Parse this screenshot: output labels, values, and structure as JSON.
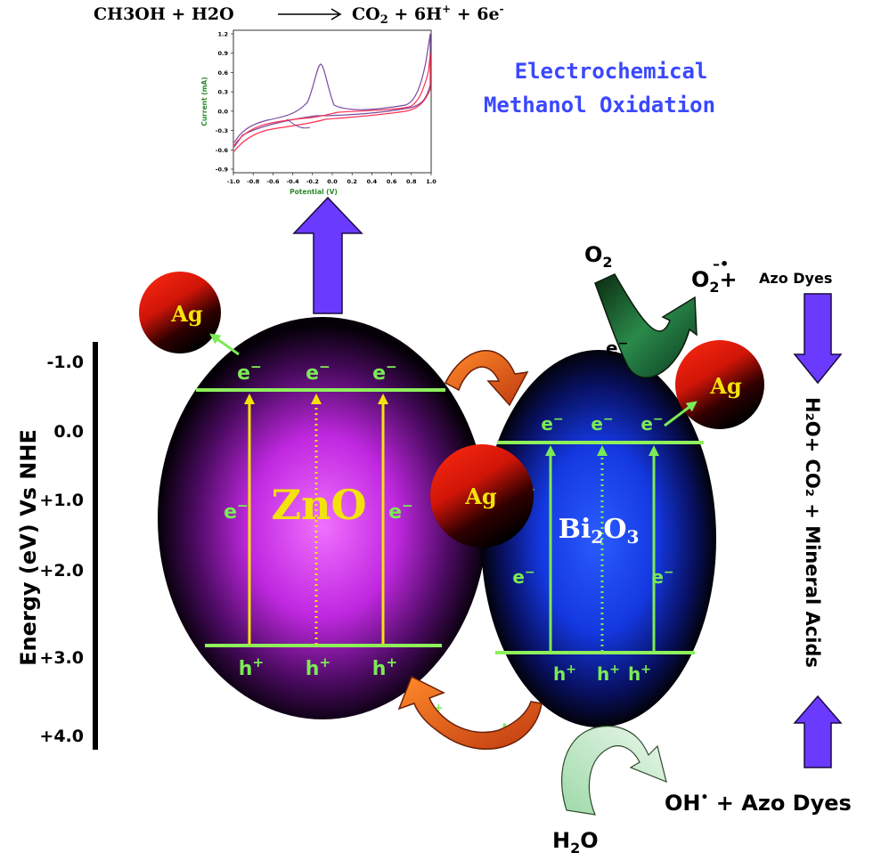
{
  "equation": {
    "left": "CH3OH + H2O",
    "right_a": "CO",
    "right_b": "2",
    "right_c": " + 6H",
    "right_d": "+",
    "right_e": " + 6e",
    "right_f": "-"
  },
  "electrochem_title": {
    "line1": "Electrochemical",
    "line2": "Methanol Oxidation"
  },
  "cv_plot": {
    "xlabel": "Potential (V)",
    "ylabel": "Current (mA)",
    "x_ticks": [
      "-1.0",
      "-0.8",
      "-0.6",
      "-0.4",
      "-0.2",
      "0.0",
      "0.2",
      "0.4",
      "0.6",
      "0.8",
      "1.0"
    ],
    "y_ticks": [
      "1.2",
      "0.9",
      "0.6",
      "0.3",
      "0.0",
      "-0.3",
      "-0.6",
      "-0.9"
    ]
  },
  "energy_axis": {
    "label": "Energy (eV)  Vs NHE",
    "ticks": [
      "-1.0",
      "0.0",
      "+1.0",
      "+2.0",
      "+3.0",
      "+4.0"
    ]
  },
  "zno": {
    "label": "ZnO",
    "e_sym": "e",
    "minus": "−",
    "h_sym": "h",
    "plus": "+"
  },
  "bi2o3": {
    "label_a": "Bi",
    "label_b": "2",
    "label_c": "O",
    "label_d": "3"
  },
  "ag": {
    "label": "Ag"
  },
  "species": {
    "o2": "O",
    "o2_sub": "2",
    "superoxide": "O",
    "superoxide_sub": "2",
    "plus_sign": "+",
    "azo_dyes_top": "Azo Dyes",
    "products": "H₂O+ CO₂ + Mineral Acids",
    "oh": "OH",
    "oh_dot": "•",
    "oh_plus": " +  Azo Dyes",
    "h2o": "H",
    "h2o_sub": "2",
    "h2o_end": "O",
    "e_minus": "e",
    "h_plus": "h"
  },
  "colors": {
    "band_line": "#8ef05a",
    "carrier_text": "#7bea55",
    "zno_core": "#e040ff",
    "bi2o3_core": "#1a4dff",
    "arrow_purple": "#6a3bff",
    "arrow_orange": "#e8551a",
    "label_yellow": "#f4e20c"
  }
}
